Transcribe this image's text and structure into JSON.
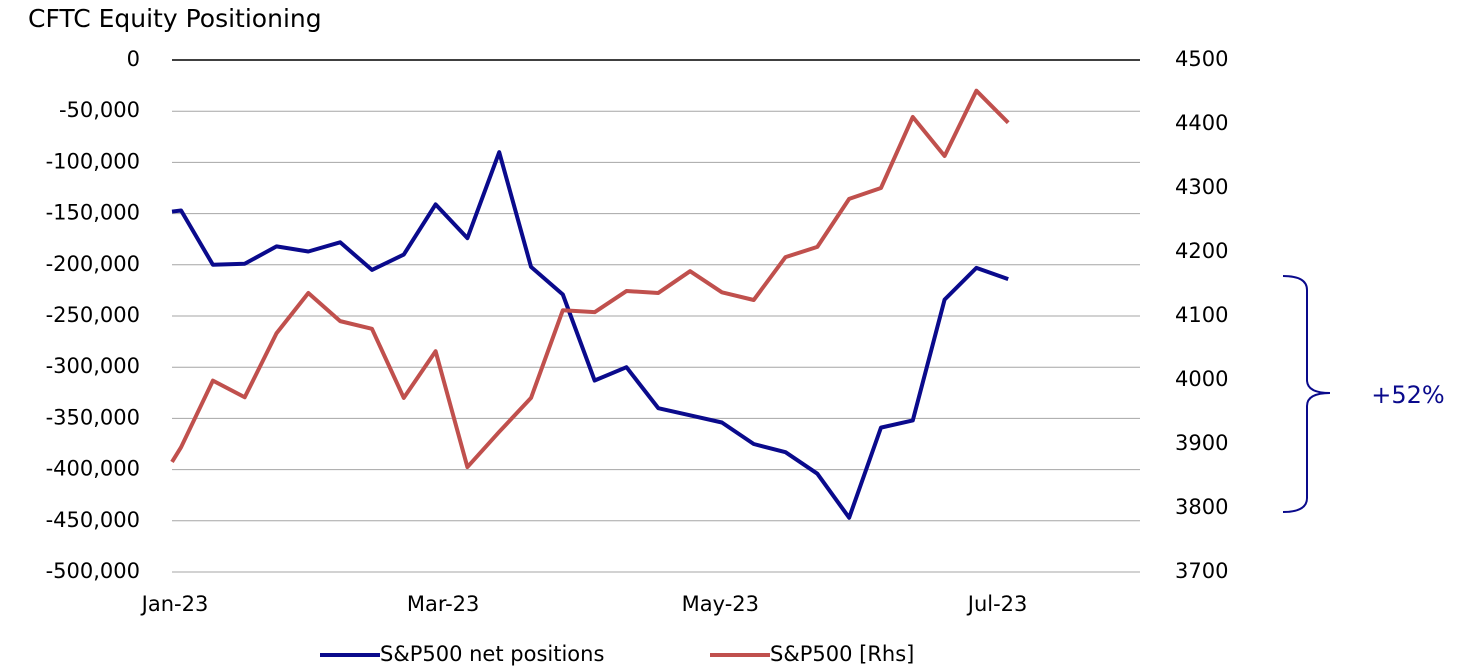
{
  "chart_data": {
    "type": "line",
    "title": "CFTC Equity Positioning",
    "x": [
      0,
      2,
      9,
      16,
      23,
      30,
      37,
      44,
      51,
      58,
      65,
      72,
      79,
      86,
      93,
      100,
      107,
      114,
      121,
      128,
      135,
      142,
      149,
      156,
      163,
      170,
      177,
      184
    ],
    "xlim": [
      0,
      213
    ],
    "xticks": [
      {
        "value": 0,
        "label": "Jan-23"
      },
      {
        "value": 59,
        "label": "Mar-23"
      },
      {
        "value": 120,
        "label": "May-23"
      },
      {
        "value": 181,
        "label": "Jul-23"
      }
    ],
    "ylim": [
      -500000,
      0
    ],
    "yticks": [
      {
        "value": -500000,
        "label": "-500,000"
      },
      {
        "value": -450000,
        "label": "-450,000"
      },
      {
        "value": -400000,
        "label": "-400,000"
      },
      {
        "value": -350000,
        "label": "-350,000"
      },
      {
        "value": -300000,
        "label": "-300,000"
      },
      {
        "value": -250000,
        "label": "-250,000"
      },
      {
        "value": -200000,
        "label": "-200,000"
      },
      {
        "value": -150000,
        "label": "-150,000"
      },
      {
        "value": -100000,
        "label": "-100,000"
      },
      {
        "value": -50000,
        "label": "-50,000"
      },
      0
    ],
    "y2lim": [
      3700,
      4500
    ],
    "y2ticks": [
      3700,
      3800,
      3900,
      4000,
      4100,
      4200,
      4300,
      4400,
      4500
    ],
    "grid": true,
    "legend": "bottom",
    "series": [
      {
        "name": "S&P500 net positions",
        "color": "#0a0a8c",
        "values": [
          -148000,
          -147000,
          -200000,
          -199000,
          -182000,
          -187000,
          -178000,
          -205000,
          -190000,
          -141000,
          -174000,
          -90000,
          -202000,
          -229000,
          -313000,
          -300000,
          -340000,
          -347000,
          -354000,
          -375000,
          -383000,
          -404000,
          -447000,
          -359000,
          -352000,
          -234000,
          -203000,
          -214000
        ]
      },
      {
        "name": "S&P500 [Rhs]",
        "color": "#c0504d",
        "axis": "y2",
        "values": [
          3872,
          3895,
          3999,
          3973,
          4073,
          4136,
          4092,
          4080,
          3972,
          4045,
          3864,
          3919,
          3972,
          4109,
          4106,
          4139,
          4136,
          4170,
          4137,
          4125,
          4192,
          4208,
          4283,
          4300,
          4411,
          4350,
          4452,
          4402
        ]
      }
    ],
    "annotations": [
      "+52%"
    ]
  }
}
